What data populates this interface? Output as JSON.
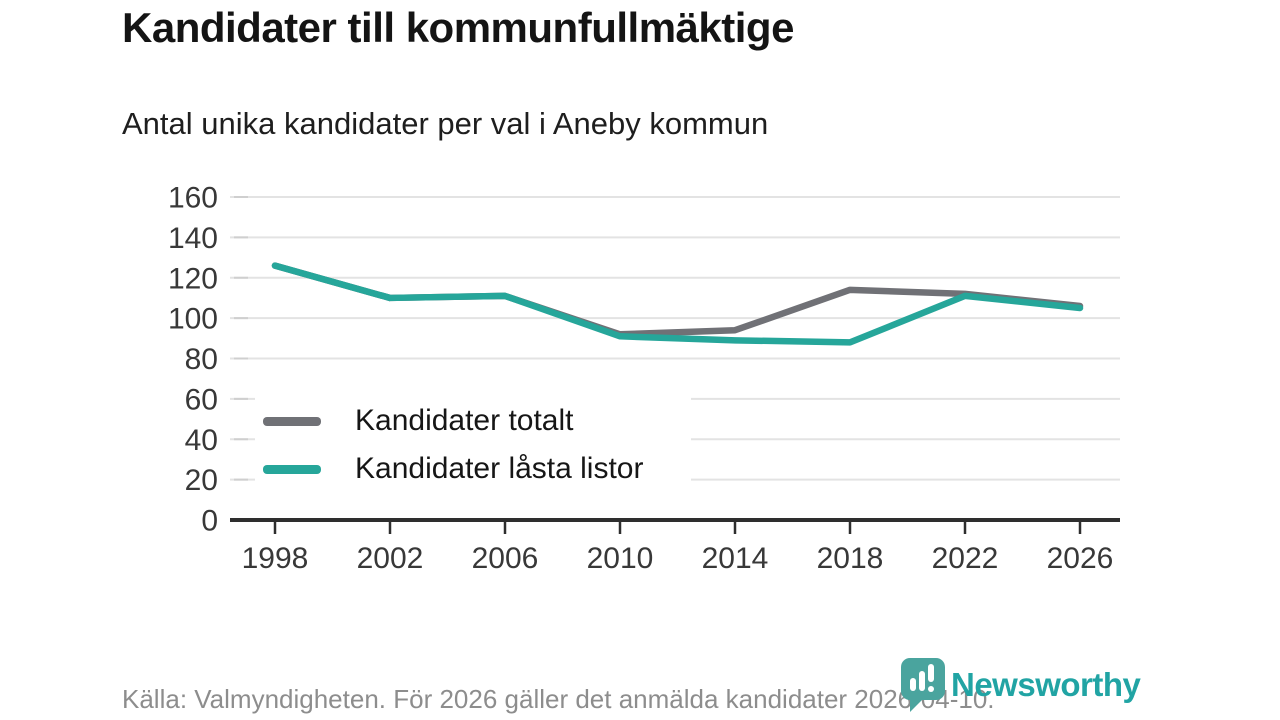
{
  "header": {
    "title": "Kandidater till kommunfullmäktige",
    "subtitle": "Antal unika kandidater per val i Aneby kommun"
  },
  "chart_data": {
    "type": "line",
    "title": "Kandidater till kommunfullmäktige",
    "subtitle": "Antal unika kandidater per val i Aneby kommun",
    "x": [
      1998,
      2002,
      2006,
      2010,
      2014,
      2018,
      2022,
      2026
    ],
    "series": [
      {
        "name": "Kandidater totalt",
        "color": "#707176",
        "values": [
          126,
          110,
          111,
          92,
          94,
          114,
          112,
          106
        ]
      },
      {
        "name": "Kandidater låsta listor",
        "color": "#26a69a",
        "values": [
          126,
          110,
          111,
          91,
          89,
          88,
          111,
          105
        ]
      }
    ],
    "xlabel": "",
    "ylabel": "",
    "ylim": [
      0,
      160
    ],
    "yticks": [
      0,
      20,
      40,
      60,
      80,
      100,
      120,
      140,
      160
    ],
    "grid": true,
    "legend_position": "inside-left-middle",
    "axis_color": "#2e2e2e",
    "grid_color": "#e3e3e3"
  },
  "footer": {
    "source": "Källa: Valmyndigheten. För 2026 gäller det anmälda kandidater 2026-04-10.",
    "brand": "Newsworthy",
    "brand_color": "#21a4a4",
    "logo_icon": "newsworthy-speech-bubble-bar-chart"
  }
}
